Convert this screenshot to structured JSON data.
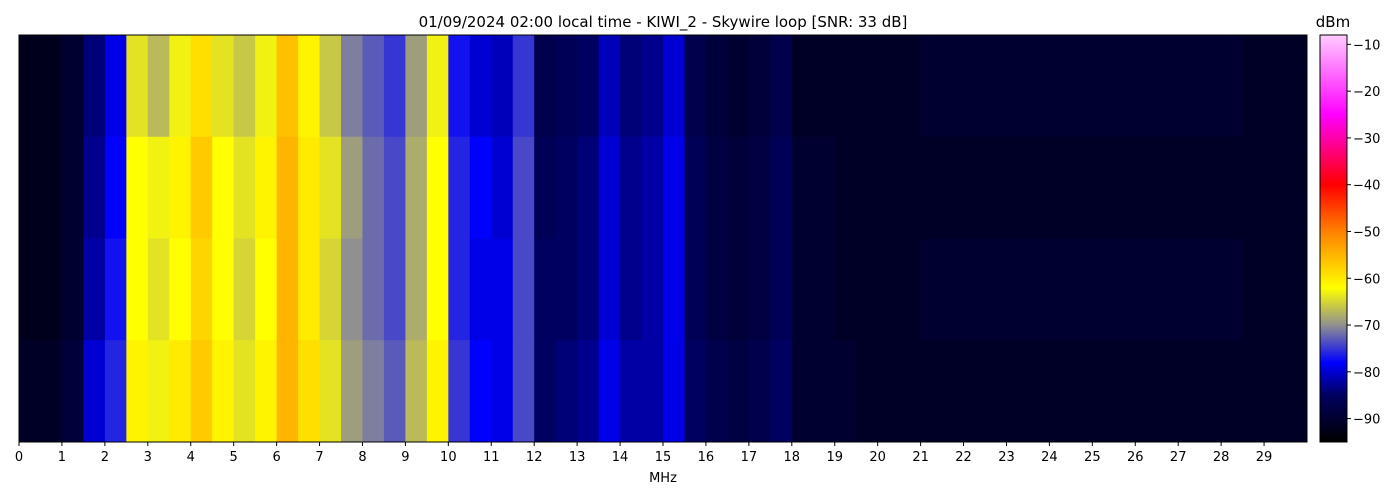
{
  "chart_data": {
    "type": "spectrogram",
    "title": "01/09/2024 02:00 local time - KIWI_2 - Skywire loop [SNR: 33 dB]",
    "x_label": "MHz",
    "colorbar_label": "dBm",
    "x_bins": [
      0,
      0.5,
      1,
      1.5,
      2,
      2.5,
      3,
      3.5,
      4,
      4.5,
      5,
      5.5,
      6,
      6.5,
      7,
      7.5,
      8,
      8.5,
      9,
      9.5,
      10,
      10.5,
      11,
      11.5,
      12,
      12.5,
      13,
      13.5,
      14,
      14.5,
      15,
      15.5,
      16,
      16.5,
      17,
      17.5,
      18,
      18.5,
      19,
      19.5,
      20,
      20.5,
      21,
      21.5,
      22,
      22.5,
      23,
      23.5,
      24,
      24.5,
      25,
      25.5,
      26,
      26.5,
      27,
      27.5,
      28,
      28.5,
      29,
      29.5,
      30
    ],
    "z": [
      [
        -92,
        -92,
        -90,
        -84,
        -79,
        -64,
        -67,
        -63,
        -59,
        -64,
        -66,
        -63,
        -56,
        -61,
        -66,
        -71,
        -73,
        -75,
        -69,
        -63,
        -77,
        -80,
        -81,
        -75,
        -87,
        -86,
        -85,
        -81,
        -84,
        -83,
        -80,
        -87,
        -89,
        -90,
        -89,
        -87,
        -91,
        -91,
        -91,
        -91,
        -91,
        -91,
        -90,
        -90,
        -90,
        -90,
        -90,
        -90,
        -90,
        -90,
        -90,
        -90,
        -90,
        -90,
        -90,
        -90,
        -90,
        -91,
        -91,
        -91
      ],
      [
        -92,
        -92,
        -90,
        -83,
        -78,
        -62,
        -63,
        -61,
        -57,
        -62,
        -64,
        -61,
        -55,
        -60,
        -64,
        -69,
        -72,
        -74,
        -68,
        -62,
        -76,
        -78,
        -80,
        -74,
        -86,
        -85,
        -84,
        -80,
        -83,
        -82,
        -79,
        -86,
        -88,
        -89,
        -88,
        -86,
        -90,
        -90,
        -91,
        -91,
        -91,
        -91,
        -91,
        -91,
        -91,
        -91,
        -91,
        -91,
        -91,
        -91,
        -91,
        -91,
        -91,
        -91,
        -91,
        -91,
        -91,
        -91,
        -91,
        -91
      ],
      [
        -92,
        -92,
        -90,
        -82,
        -77,
        -62,
        -64,
        -62,
        -58,
        -62,
        -65,
        -62,
        -55,
        -60,
        -65,
        -70,
        -72,
        -74,
        -68,
        -62,
        -76,
        -79,
        -79,
        -74,
        -85,
        -85,
        -84,
        -80,
        -83,
        -82,
        -79,
        -86,
        -88,
        -89,
        -88,
        -86,
        -90,
        -90,
        -91,
        -91,
        -91,
        -91,
        -90,
        -90,
        -90,
        -90,
        -90,
        -90,
        -90,
        -90,
        -90,
        -90,
        -90,
        -90,
        -90,
        -90,
        -90,
        -91,
        -91,
        -91
      ],
      [
        -91,
        -91,
        -89,
        -80,
        -76,
        -61,
        -63,
        -60,
        -57,
        -61,
        -64,
        -61,
        -55,
        -59,
        -64,
        -69,
        -71,
        -73,
        -67,
        -61,
        -75,
        -78,
        -79,
        -74,
        -85,
        -84,
        -83,
        -79,
        -82,
        -82,
        -79,
        -85,
        -87,
        -88,
        -87,
        -85,
        -90,
        -90,
        -90,
        -91,
        -91,
        -91,
        -91,
        -91,
        -91,
        -91,
        -91,
        -91,
        -91,
        -91,
        -91,
        -91,
        -91,
        -91,
        -91,
        -91,
        -91,
        -91,
        -91,
        -91
      ]
    ],
    "xlim": [
      0,
      30
    ],
    "xticks": [
      0,
      1,
      2,
      3,
      4,
      5,
      6,
      7,
      8,
      9,
      10,
      11,
      12,
      13,
      14,
      15,
      16,
      17,
      18,
      19,
      20,
      21,
      22,
      23,
      24,
      25,
      26,
      27,
      28,
      29
    ],
    "zlim": [
      -95,
      -8
    ],
    "zticks": [
      {
        "value": -90,
        "label": "−90"
      },
      {
        "value": -80,
        "label": "−80"
      },
      {
        "value": -70,
        "label": "−70"
      },
      {
        "value": -60,
        "label": "−60"
      },
      {
        "value": -50,
        "label": "−50"
      },
      {
        "value": -40,
        "label": "−40"
      },
      {
        "value": -30,
        "label": "−30"
      },
      {
        "value": -20,
        "label": "−20"
      },
      {
        "value": -10,
        "label": "−10"
      }
    ],
    "colorscale": [
      [
        -95,
        "#000000"
      ],
      [
        -85,
        "#000060"
      ],
      [
        -78,
        "#0000ff"
      ],
      [
        -70,
        "#909090"
      ],
      [
        -62,
        "#ffff00"
      ],
      [
        -50,
        "#ff8000"
      ],
      [
        -40,
        "#ff0000"
      ],
      [
        -25,
        "#ff00ff"
      ],
      [
        -8,
        "#ffccff"
      ]
    ]
  }
}
